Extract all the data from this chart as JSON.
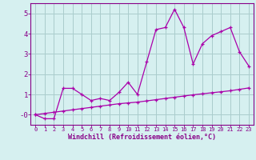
{
  "title": "",
  "xlabel": "Windchill (Refroidissement éolien,°C)",
  "background_color": "#d6f0f0",
  "grid_color": "#aacccc",
  "line_color": "#aa00aa",
  "spine_color": "#880088",
  "xlim": [
    -0.5,
    23.5
  ],
  "ylim": [
    -0.5,
    5.5
  ],
  "yticks": [
    0,
    1,
    2,
    3,
    4,
    5
  ],
  "ytick_labels": [
    "-0",
    "1",
    "2",
    "3",
    "4",
    "5"
  ],
  "xticks": [
    0,
    1,
    2,
    3,
    4,
    5,
    6,
    7,
    8,
    9,
    10,
    11,
    12,
    13,
    14,
    15,
    16,
    17,
    18,
    19,
    20,
    21,
    22,
    23
  ],
  "series1_x": [
    0,
    1,
    2,
    3,
    4,
    5,
    6,
    7,
    8,
    9,
    10,
    11,
    12,
    13,
    14,
    15,
    16,
    17,
    18,
    19,
    20,
    21,
    22,
    23
  ],
  "series1_y": [
    0.0,
    0.06,
    0.12,
    0.18,
    0.24,
    0.3,
    0.36,
    0.42,
    0.48,
    0.54,
    0.58,
    0.62,
    0.68,
    0.74,
    0.8,
    0.86,
    0.92,
    0.98,
    1.03,
    1.08,
    1.13,
    1.18,
    1.25,
    1.32
  ],
  "series2_x": [
    0,
    1,
    2,
    3,
    4,
    5,
    6,
    7,
    8,
    9,
    10,
    11,
    12,
    13,
    14,
    15,
    16,
    17,
    18,
    19,
    20,
    21,
    22,
    23
  ],
  "series2_y": [
    0.0,
    -0.2,
    -0.2,
    1.3,
    1.3,
    1.0,
    0.7,
    0.8,
    0.7,
    1.1,
    1.6,
    1.0,
    2.6,
    4.2,
    4.3,
    5.2,
    4.3,
    2.5,
    3.5,
    3.9,
    4.1,
    4.3,
    3.1,
    2.4
  ]
}
